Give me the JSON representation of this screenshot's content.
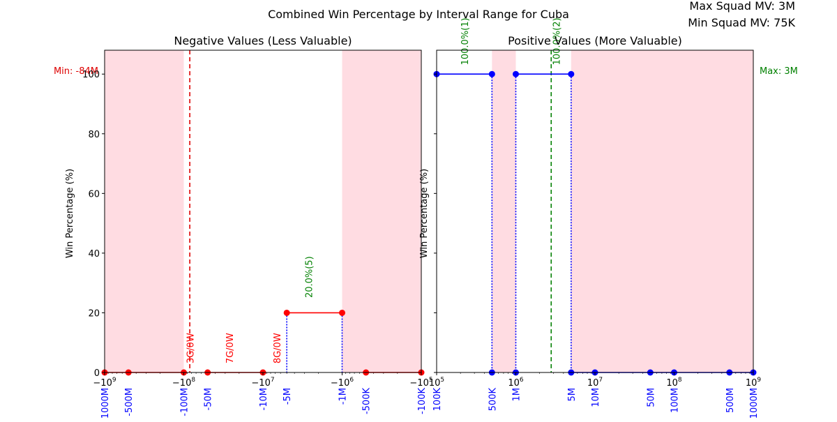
{
  "figure": {
    "title": "Combined Win Percentage by Interval Range for Cuba",
    "corner_lines": [
      "Max Squad MV: 3M",
      "Min Squad MV: 75K"
    ]
  },
  "chart_data": [
    {
      "type": "line",
      "title": "Negative Values (Less Valuable)",
      "ylabel": "Win Percentage (%)",
      "xscale": "symlog-negative (log of magnitude)",
      "xlim": [
        -1000000000,
        -100000
      ],
      "ylim": [
        0,
        108
      ],
      "yticks": [
        0,
        20,
        40,
        60,
        80,
        100
      ],
      "xtick_labels_math": [
        {
          "value": -1000000000,
          "label": "−10^9"
        },
        {
          "value": -100000000,
          "label": "−10^8"
        },
        {
          "value": -10000000,
          "label": "−10^7"
        },
        {
          "value": -1000000,
          "label": "−10^6"
        },
        {
          "value": -100000,
          "label": "−10^5"
        }
      ],
      "interval_labels": [
        {
          "value": -1000000000,
          "label": "-1000M"
        },
        {
          "value": -500000000,
          "label": "-500M"
        },
        {
          "value": -100000000,
          "label": "-100M"
        },
        {
          "value": -50000000,
          "label": "-50M"
        },
        {
          "value": -10000000,
          "label": "-10M"
        },
        {
          "value": -5000000,
          "label": "-5M"
        },
        {
          "value": -1000000,
          "label": "-1M"
        },
        {
          "value": -500000,
          "label": "-500K"
        },
        {
          "value": -100000,
          "label": "-100K"
        }
      ],
      "series": [
        {
          "color": "#ff0000",
          "points": [
            {
              "x": -1000000000,
              "y": 0
            },
            {
              "x": -500000000,
              "y": 0
            },
            {
              "x": -100000000,
              "y": 0
            },
            {
              "x": -50000000,
              "y": 0
            },
            {
              "x": -10000000,
              "y": 0
            },
            {
              "x": -5000000,
              "y": 20
            },
            {
              "x": -1000000,
              "y": 20
            },
            {
              "x": -500000,
              "y": 0
            },
            {
              "x": -100000,
              "y": 0
            }
          ],
          "segments": [
            [
              0,
              1
            ],
            [
              1,
              2
            ],
            [
              3,
              4
            ],
            [
              5,
              6
            ],
            [
              7,
              8
            ]
          ]
        }
      ],
      "dotted_verticals": [
        {
          "x": -5000000,
          "y": 20
        },
        {
          "x": -1000000,
          "y": 20
        }
      ],
      "shaded_ranges": [
        {
          "from": -1000000000,
          "to": -100000000
        },
        {
          "from": -1000000,
          "to": -100000
        }
      ],
      "reference_line": {
        "x": -84000000,
        "color": "#dd0000",
        "label": "Min: -84M"
      },
      "annotations": [
        {
          "x": -75000000,
          "y": 3,
          "text": "3G/0W",
          "color": "#ff0000"
        },
        {
          "x": -24000000,
          "y": 3,
          "text": "7G/0W",
          "color": "#ff0000"
        },
        {
          "x": -6000000,
          "y": 3,
          "text": "8G/0W",
          "color": "#ff0000"
        },
        {
          "x": -2400000,
          "y": 25,
          "text": "20.0%(5)",
          "color": "#008000"
        }
      ]
    },
    {
      "type": "line",
      "title": "Positive Values (More Valuable)",
      "ylabel": "Win Percentage (%)",
      "xscale": "log",
      "xlim": [
        100000,
        1000000000
      ],
      "ylim": [
        0,
        108
      ],
      "yticks": [
        0,
        20,
        40,
        60,
        80,
        100
      ],
      "xtick_labels_math": [
        {
          "value": 100000,
          "label": "10^5"
        },
        {
          "value": 1000000,
          "label": "10^6"
        },
        {
          "value": 10000000,
          "label": "10^7"
        },
        {
          "value": 100000000,
          "label": "10^8"
        },
        {
          "value": 1000000000,
          "label": "10^9"
        }
      ],
      "interval_labels": [
        {
          "value": 100000,
          "label": "100K"
        },
        {
          "value": 500000,
          "label": "500K"
        },
        {
          "value": 1000000,
          "label": "1M"
        },
        {
          "value": 5000000,
          "label": "5M"
        },
        {
          "value": 10000000,
          "label": "10M"
        },
        {
          "value": 50000000,
          "label": "50M"
        },
        {
          "value": 100000000,
          "label": "100M"
        },
        {
          "value": 500000000,
          "label": "500M"
        },
        {
          "value": 1000000000,
          "label": "1000M"
        }
      ],
      "series": [
        {
          "color": "#0000ff",
          "points": [
            {
              "x": 100000,
              "y": 100
            },
            {
              "x": 500000,
              "y": 100
            },
            {
              "x": 500000,
              "y": 0
            },
            {
              "x": 1000000,
              "y": 100
            },
            {
              "x": 1000000,
              "y": 0
            },
            {
              "x": 5000000,
              "y": 100
            },
            {
              "x": 5000000,
              "y": 0
            },
            {
              "x": 10000000,
              "y": 0
            },
            {
              "x": 50000000,
              "y": 0
            },
            {
              "x": 100000000,
              "y": 0
            },
            {
              "x": 500000000,
              "y": 0
            },
            {
              "x": 1000000000,
              "y": 0
            }
          ],
          "segments": [
            [
              0,
              1
            ],
            [
              3,
              5
            ],
            [
              6,
              7
            ],
            [
              7,
              8
            ],
            [
              8,
              9
            ],
            [
              9,
              10
            ],
            [
              10,
              11
            ]
          ]
        }
      ],
      "dotted_verticals": [
        {
          "x": 500000,
          "y": 100
        },
        {
          "x": 1000000,
          "y": 100
        },
        {
          "x": 5000000,
          "y": 100
        }
      ],
      "shaded_ranges": [
        {
          "from": 500000,
          "to": 1000000
        },
        {
          "from": 5000000,
          "to": 1000000000
        }
      ],
      "reference_line": {
        "x": 2800000,
        "color": "#008000",
        "label": "Max: 3M"
      },
      "annotations": [
        {
          "x": 250000,
          "y": 103,
          "text": "100.0%(1)",
          "color": "#008000"
        },
        {
          "x": 3600000,
          "y": 103,
          "text": "100.0%(2)",
          "color": "#008000"
        }
      ]
    }
  ]
}
